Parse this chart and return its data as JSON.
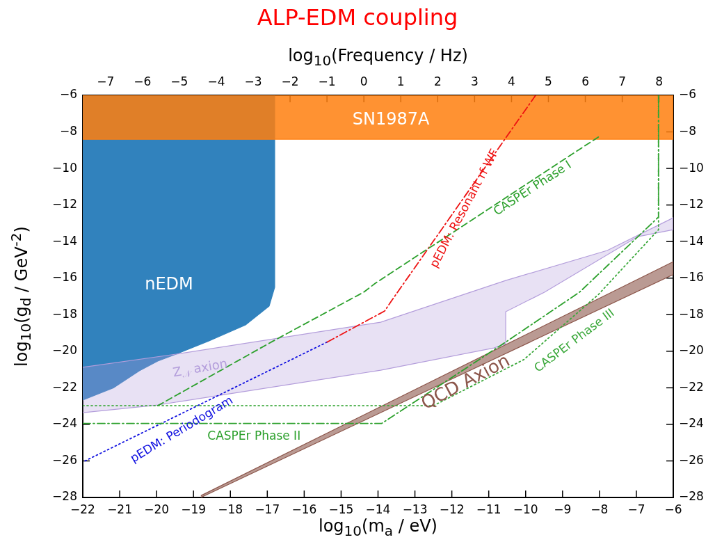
{
  "chart_data": {
    "type": "line",
    "title": "ALP-EDM coupling",
    "xlabel": "log$_{10}$(m$_{a}$ / eV)",
    "ylabel": "log$_{10}$(g$_{d}$ / GeV$^{-2}$)",
    "x2label": "log$_{10}$(Frequency / Hz)",
    "xlim": [
      -22,
      -6
    ],
    "xticks": [
      -22,
      -21,
      -20,
      -19,
      -18,
      -17,
      -16,
      -15,
      -14,
      -13,
      -12,
      -11,
      -10,
      -9,
      -8,
      -7,
      -6
    ],
    "ylim": [
      -28,
      -6
    ],
    "yticks": [
      -28,
      -26,
      -24,
      -22,
      -20,
      -18,
      -16,
      -14,
      -12,
      -10,
      -8,
      -6
    ],
    "y2lim": [
      -28,
      -6
    ],
    "y2ticks": [
      -28,
      -26,
      -24,
      -22,
      -20,
      -18,
      -16,
      -14,
      -12,
      -10,
      -8,
      -6
    ],
    "x2lim": [
      -7.617,
      8.383
    ],
    "x2ticks": [
      -7,
      -6,
      -5,
      -4,
      -3,
      -2,
      -1,
      0,
      1,
      2,
      3,
      4,
      5,
      6,
      7,
      8
    ],
    "grid": false,
    "legend": false,
    "marker": "none",
    "series": [
      {
        "name": "nEDM",
        "type": "area",
        "color": "#3182bd",
        "x": [
          -22,
          -16.8,
          -16.8,
          -16.95,
          -17.59,
          -18.59,
          -19.47,
          -19.97,
          -20.47,
          -21.17,
          -22
        ],
        "values": [
          -6,
          -6,
          -16.5,
          -17.53,
          -18.56,
          -19.44,
          -20.16,
          -20.54,
          -21.07,
          -22.0,
          -22.67
        ]
      },
      {
        "name": "SN1987A",
        "type": "area",
        "color": "#ff7f0e",
        "x": [
          -22,
          -6,
          -6,
          -22
        ],
        "values": [
          -6,
          -6,
          -8.4,
          -8.4
        ]
      },
      {
        "name": "Z$_{𝒩}$ axion",
        "type": "area",
        "color": "#b39ddb",
        "x": [
          -22,
          -19.47,
          -13.93,
          -10.54,
          -7.79,
          -6,
          -6,
          -6.96,
          -9.49,
          -10.54,
          -10.54,
          -10.86,
          -13.93,
          -19.97,
          -22
        ],
        "values": [
          -20.88,
          -20.16,
          -18.41,
          -16.13,
          -14.49,
          -12.7,
          -13.35,
          -13.73,
          -16.77,
          -17.84,
          -19.6,
          -19.82,
          -21.04,
          -22.94,
          -23.36
        ]
      },
      {
        "name": "QCD Axion",
        "type": "area",
        "color": "#8c564b",
        "x": [
          -18.8,
          -6,
          -6,
          -18.8
        ],
        "values": [
          -27.9,
          -15.1,
          -15.8,
          -28
        ]
      },
      {
        "name": "pEDM: Periodogram",
        "color": "#1010e0",
        "line_style": "dotted",
        "x": [
          -21.94,
          -15.38
        ],
        "values": [
          -26.0,
          -19.5
        ]
      },
      {
        "name": "pEDM: Resonant rf WF",
        "color": "#ee1111",
        "line_style": "dashdot",
        "x": [
          -15.38,
          -13.82,
          -13.63,
          -9.73
        ],
        "values": [
          -19.5,
          -17.8,
          -17.23,
          -6
        ]
      },
      {
        "name": "CASPEr Phase I",
        "color": "#2ca02c",
        "line_style": "dashed",
        "x": [
          -19.97,
          -16.84,
          -14.39,
          -14.07,
          -8.03
        ],
        "values": [
          -22.98,
          -19.44,
          -16.77,
          -16.28,
          -8.28
        ]
      },
      {
        "name": "CASPEr Phase II",
        "color": "#2ca02c",
        "line_style": "dashdot",
        "x": [
          -22,
          -13.9,
          -10.54,
          -8.54,
          -6.4,
          -6.4
        ],
        "values": [
          -23.95,
          -23.95,
          -19.5,
          -16.77,
          -12.66,
          -6
        ]
      },
      {
        "name": "CASPEr Phase III",
        "color": "#3aa83a",
        "line_style": "dotted",
        "x": [
          -22,
          -12.5,
          -10.05,
          -8.03,
          -6.4,
          -6.4
        ],
        "values": [
          -22.98,
          -22.98,
          -20.46,
          -16.9,
          -13.35,
          -6
        ]
      }
    ]
  }
}
